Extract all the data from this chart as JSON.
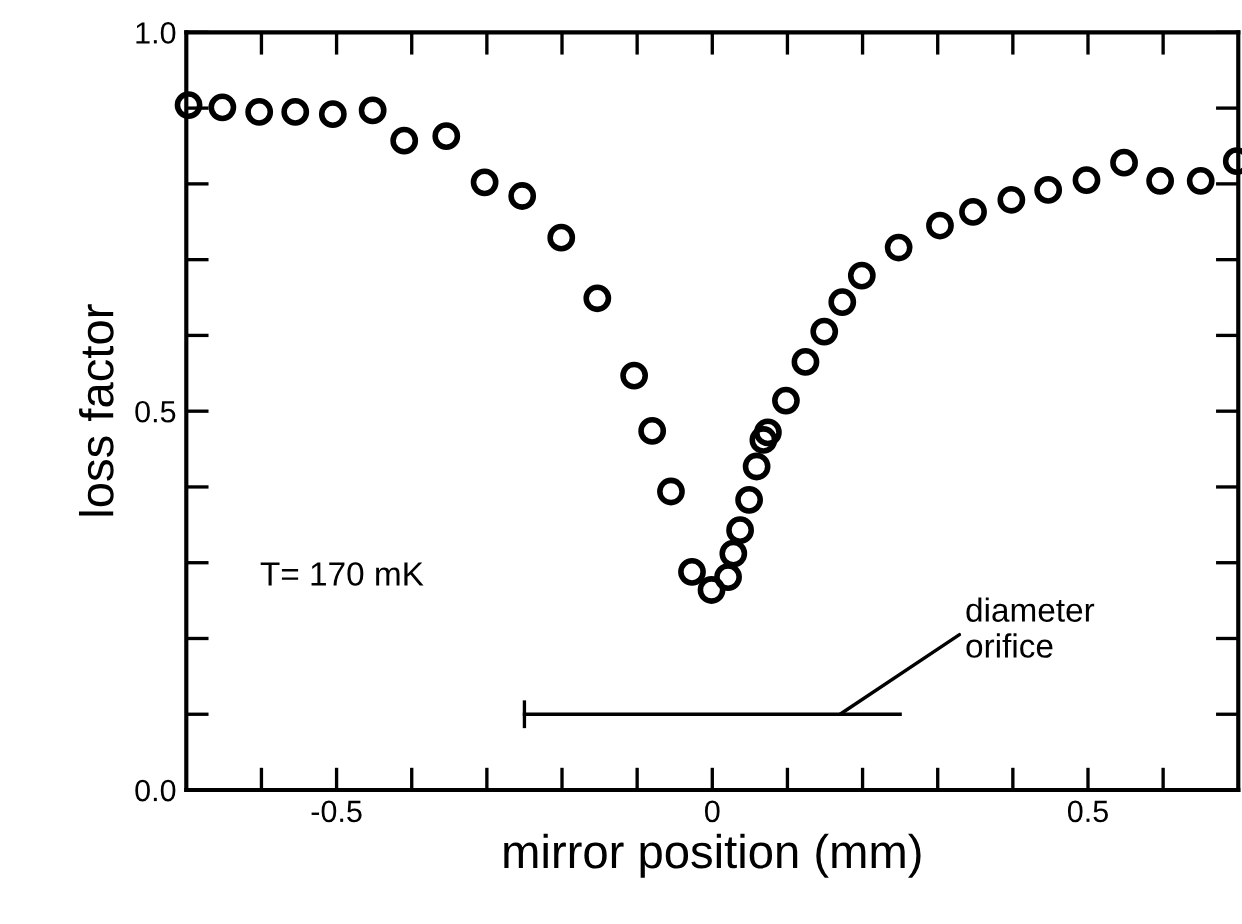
{
  "chart_data": {
    "type": "scatter",
    "xlabel": "mirror position (mm)",
    "ylabel": "loss factor",
    "annotations": [
      "T= 170 mK",
      {
        "text": "diameter\norifice",
        "x": 0.17,
        "y": 0.1
      }
    ],
    "series": [
      {
        "color": "#000000",
        "marker": "circle",
        "x": [
          -0.697,
          -0.652,
          -0.603,
          -0.555,
          -0.505,
          -0.452,
          -0.41,
          -0.354,
          -0.303,
          -0.253,
          -0.201,
          -0.153,
          -0.104,
          -0.08,
          -0.055,
          -0.027,
          -0.001,
          0.021,
          0.028,
          0.037,
          0.049,
          0.059,
          0.068,
          0.074,
          0.098,
          0.124,
          0.149,
          0.173,
          0.199,
          0.248,
          0.303,
          0.347,
          0.398,
          0.447,
          0.498,
          0.548,
          0.596,
          0.65,
          0.698
        ],
        "values": [
          0.904,
          0.901,
          0.895,
          0.895,
          0.892,
          0.897,
          0.857,
          0.863,
          0.802,
          0.784,
          0.729,
          0.649,
          0.547,
          0.474,
          0.394,
          0.288,
          0.264,
          0.281,
          0.312,
          0.343,
          0.383,
          0.427,
          0.462,
          0.472,
          0.514,
          0.565,
          0.605,
          0.644,
          0.679,
          0.716,
          0.745,
          0.763,
          0.779,
          0.792,
          0.805,
          0.828,
          0.804,
          0.804,
          0.83
        ]
      },
      {
        "type": "line",
        "color": "#000000",
        "marker": "none",
        "x": [
          -0.25,
          0.25
        ],
        "values": [
          0.1,
          0.1
        ]
      }
    ],
    "xlim": [
      -0.7,
      0.7
    ],
    "ylim": [
      0,
      1.0
    ],
    "xticks": [
      {
        "value": -0.6,
        "label": null
      },
      -0.5,
      {
        "value": -0.4,
        "label": null
      },
      {
        "value": -0.3,
        "label": null
      },
      {
        "value": -0.2,
        "label": null
      },
      {
        "value": -0.1,
        "label": null
      },
      0,
      {
        "value": 0.1,
        "label": null
      },
      {
        "value": 0.2,
        "label": null
      },
      {
        "value": 0.3,
        "label": null
      },
      {
        "value": 0.4,
        "label": null
      },
      0.5,
      {
        "value": 0.6,
        "label": null
      }
    ],
    "yticks": [
      {
        "value": 0,
        "label": "0.0"
      },
      {
        "value": 0.1,
        "label": null
      },
      {
        "value": 0.2,
        "label": null
      },
      {
        "value": 0.3,
        "label": null
      },
      {
        "value": 0.4,
        "label": null
      },
      0.5,
      {
        "value": 0.6,
        "label": null
      },
      {
        "value": 0.7,
        "label": null
      },
      {
        "value": 0.8,
        "label": null
      },
      {
        "value": 0.9,
        "label": null
      },
      {
        "value": 1.0,
        "label": "1.0"
      }
    ],
    "grid": false,
    "legend": false
  }
}
